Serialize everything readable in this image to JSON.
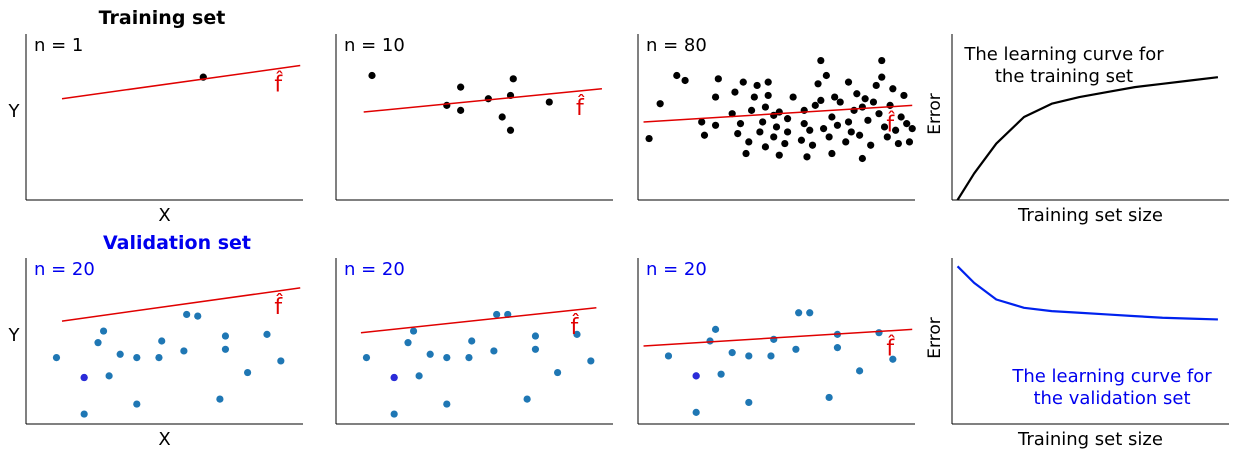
{
  "colors": {
    "train_point": "#000000",
    "val_point": "#1f77b4",
    "highlight_point": "#2b2bd9",
    "fit_line": "#e00000",
    "hat_label": "#e00000",
    "train_curve": "#000000",
    "val_curve": "#0022ee",
    "val_title": "#0000ee"
  },
  "headers": {
    "training": "Training set",
    "validation": "Validation set"
  },
  "fhat_label": "f̂",
  "chart_data": [
    {
      "id": "train-n1",
      "type": "scatter",
      "row": 0,
      "col": 0,
      "annotation": "n = 1",
      "xlabel": "X",
      "ylabel": "Y",
      "xlim": [
        0,
        10
      ],
      "ylim": [
        0,
        10
      ],
      "ann_color": "#000000",
      "fit": {
        "x": [
          1.3,
          9.9
        ],
        "y": [
          6.1,
          8.1
        ]
      },
      "points": [
        {
          "x": 6.4,
          "y": 7.4
        }
      ]
    },
    {
      "id": "train-n10",
      "type": "scatter",
      "row": 0,
      "col": 1,
      "annotation": "n = 10",
      "xlabel": "",
      "ylabel": "",
      "xlim": [
        0,
        10
      ],
      "ylim": [
        0,
        10
      ],
      "ann_color": "#000000",
      "fit": {
        "x": [
          1.0,
          9.6
        ],
        "y": [
          5.3,
          6.7
        ]
      },
      "points": [
        {
          "x": 1.3,
          "y": 7.5
        },
        {
          "x": 4.0,
          "y": 5.7
        },
        {
          "x": 4.5,
          "y": 5.4
        },
        {
          "x": 4.5,
          "y": 6.8
        },
        {
          "x": 5.5,
          "y": 6.1
        },
        {
          "x": 6.0,
          "y": 5.0
        },
        {
          "x": 6.3,
          "y": 4.2
        },
        {
          "x": 6.3,
          "y": 6.3
        },
        {
          "x": 6.4,
          "y": 7.3
        },
        {
          "x": 7.7,
          "y": 5.9
        }
      ]
    },
    {
      "id": "train-n80",
      "type": "scatter",
      "row": 0,
      "col": 2,
      "annotation": "n = 80",
      "xlabel": "",
      "ylabel": "",
      "xlim": [
        0,
        10
      ],
      "ylim": [
        0,
        10
      ],
      "ann_color": "#000000",
      "fit": {
        "x": [
          0.2,
          9.9
        ],
        "y": [
          4.7,
          5.7
        ]
      },
      "points": [
        {
          "x": 0.4,
          "y": 3.7
        },
        {
          "x": 0.8,
          "y": 5.8
        },
        {
          "x": 1.4,
          "y": 7.5
        },
        {
          "x": 1.7,
          "y": 7.2
        },
        {
          "x": 2.3,
          "y": 4.7
        },
        {
          "x": 2.4,
          "y": 3.9
        },
        {
          "x": 2.8,
          "y": 4.5
        },
        {
          "x": 2.8,
          "y": 6.2
        },
        {
          "x": 2.9,
          "y": 7.3
        },
        {
          "x": 3.4,
          "y": 5.2
        },
        {
          "x": 3.5,
          "y": 6.5
        },
        {
          "x": 3.6,
          "y": 4.0
        },
        {
          "x": 3.7,
          "y": 4.6
        },
        {
          "x": 3.8,
          "y": 7.1
        },
        {
          "x": 3.9,
          "y": 2.8
        },
        {
          "x": 4.0,
          "y": 3.5
        },
        {
          "x": 4.1,
          "y": 5.4
        },
        {
          "x": 4.2,
          "y": 6.2
        },
        {
          "x": 4.3,
          "y": 6.9
        },
        {
          "x": 4.4,
          "y": 4.1
        },
        {
          "x": 4.5,
          "y": 4.7
        },
        {
          "x": 4.6,
          "y": 3.2
        },
        {
          "x": 4.6,
          "y": 5.6
        },
        {
          "x": 4.7,
          "y": 6.3
        },
        {
          "x": 4.7,
          "y": 7.1
        },
        {
          "x": 4.9,
          "y": 3.8
        },
        {
          "x": 5.0,
          "y": 4.4
        },
        {
          "x": 5.1,
          "y": 2.7
        },
        {
          "x": 5.1,
          "y": 5.3
        },
        {
          "x": 5.3,
          "y": 3.4
        },
        {
          "x": 5.4,
          "y": 4.1
        },
        {
          "x": 5.4,
          "y": 4.9
        },
        {
          "x": 5.6,
          "y": 6.2
        },
        {
          "x": 5.9,
          "y": 3.6
        },
        {
          "x": 6.0,
          "y": 4.6
        },
        {
          "x": 6.0,
          "y": 5.4
        },
        {
          "x": 6.1,
          "y": 2.6
        },
        {
          "x": 6.2,
          "y": 4.2
        },
        {
          "x": 6.3,
          "y": 3.3
        },
        {
          "x": 6.4,
          "y": 5.7
        },
        {
          "x": 6.5,
          "y": 7.0
        },
        {
          "x": 6.6,
          "y": 8.4
        },
        {
          "x": 6.6,
          "y": 6.0
        },
        {
          "x": 6.7,
          "y": 4.3
        },
        {
          "x": 6.8,
          "y": 7.5
        },
        {
          "x": 6.9,
          "y": 3.8
        },
        {
          "x": 7.0,
          "y": 5.0
        },
        {
          "x": 7.0,
          "y": 2.8
        },
        {
          "x": 7.1,
          "y": 6.2
        },
        {
          "x": 7.2,
          "y": 4.5
        },
        {
          "x": 7.3,
          "y": 5.9
        },
        {
          "x": 7.5,
          "y": 3.5
        },
        {
          "x": 7.6,
          "y": 7.1
        },
        {
          "x": 7.7,
          "y": 4.1
        },
        {
          "x": 7.8,
          "y": 5.4
        },
        {
          "x": 7.9,
          "y": 6.4
        },
        {
          "x": 8.0,
          "y": 3.9
        },
        {
          "x": 8.1,
          "y": 2.5
        },
        {
          "x": 8.1,
          "y": 5.6
        },
        {
          "x": 8.2,
          "y": 6.1
        },
        {
          "x": 8.3,
          "y": 4.8
        },
        {
          "x": 8.4,
          "y": 3.3
        },
        {
          "x": 8.5,
          "y": 5.9
        },
        {
          "x": 8.6,
          "y": 6.9
        },
        {
          "x": 8.7,
          "y": 5.2
        },
        {
          "x": 8.8,
          "y": 7.4
        },
        {
          "x": 8.9,
          "y": 4.4
        },
        {
          "x": 9.0,
          "y": 3.8
        },
        {
          "x": 9.1,
          "y": 5.7
        },
        {
          "x": 9.2,
          "y": 6.7
        },
        {
          "x": 9.3,
          "y": 4.2
        },
        {
          "x": 9.4,
          "y": 3.4
        },
        {
          "x": 9.5,
          "y": 5.0
        },
        {
          "x": 9.6,
          "y": 6.3
        },
        {
          "x": 9.7,
          "y": 4.6
        },
        {
          "x": 9.8,
          "y": 3.5
        },
        {
          "x": 9.9,
          "y": 4.3
        },
        {
          "x": 8.8,
          "y": 8.4
        },
        {
          "x": 4.9,
          "y": 5.1
        },
        {
          "x": 7.6,
          "y": 4.7
        }
      ]
    },
    {
      "id": "val-n20-1",
      "type": "scatter",
      "row": 1,
      "col": 0,
      "annotation": "n = 20",
      "xlabel": "X",
      "ylabel": "Y",
      "xlim": [
        0,
        10
      ],
      "ylim": [
        0,
        10
      ],
      "ann_color": "#0000ee",
      "fit": {
        "x": [
          1.3,
          9.9
        ],
        "y": [
          6.2,
          8.2
        ]
      },
      "points": [
        {
          "x": 1.1,
          "y": 4.0
        },
        {
          "x": 2.1,
          "y": 2.8
        },
        {
          "x": 2.1,
          "y": 0.6
        },
        {
          "x": 2.6,
          "y": 4.9
        },
        {
          "x": 2.8,
          "y": 5.6
        },
        {
          "x": 3.0,
          "y": 2.9
        },
        {
          "x": 3.4,
          "y": 4.2
        },
        {
          "x": 4.0,
          "y": 1.2
        },
        {
          "x": 4.0,
          "y": 4.0
        },
        {
          "x": 4.8,
          "y": 4.0
        },
        {
          "x": 4.9,
          "y": 5.0
        },
        {
          "x": 5.7,
          "y": 4.4
        },
        {
          "x": 5.8,
          "y": 6.6
        },
        {
          "x": 6.2,
          "y": 6.5
        },
        {
          "x": 7.0,
          "y": 1.5
        },
        {
          "x": 7.2,
          "y": 4.5
        },
        {
          "x": 7.2,
          "y": 5.3
        },
        {
          "x": 8.0,
          "y": 3.1
        },
        {
          "x": 8.7,
          "y": 5.4
        },
        {
          "x": 9.2,
          "y": 3.8
        }
      ],
      "highlight": [
        {
          "x": 2.1,
          "y": 2.8
        }
      ]
    },
    {
      "id": "val-n20-2",
      "type": "scatter",
      "row": 1,
      "col": 1,
      "annotation": "n = 20",
      "xlabel": "",
      "ylabel": "",
      "xlim": [
        0,
        10
      ],
      "ylim": [
        0,
        10
      ],
      "ann_color": "#0000ee",
      "fit": {
        "x": [
          0.9,
          9.4
        ],
        "y": [
          5.5,
          7.0
        ]
      },
      "points": [
        {
          "x": 1.1,
          "y": 4.0
        },
        {
          "x": 2.1,
          "y": 2.8
        },
        {
          "x": 2.1,
          "y": 0.6
        },
        {
          "x": 2.6,
          "y": 4.9
        },
        {
          "x": 2.8,
          "y": 5.6
        },
        {
          "x": 3.0,
          "y": 2.9
        },
        {
          "x": 3.4,
          "y": 4.2
        },
        {
          "x": 4.0,
          "y": 1.2
        },
        {
          "x": 4.0,
          "y": 4.0
        },
        {
          "x": 4.8,
          "y": 4.0
        },
        {
          "x": 4.9,
          "y": 5.0
        },
        {
          "x": 5.7,
          "y": 4.4
        },
        {
          "x": 5.8,
          "y": 6.6
        },
        {
          "x": 6.2,
          "y": 6.6
        },
        {
          "x": 6.9,
          "y": 1.5
        },
        {
          "x": 7.2,
          "y": 4.5
        },
        {
          "x": 7.2,
          "y": 5.3
        },
        {
          "x": 8.0,
          "y": 3.1
        },
        {
          "x": 8.7,
          "y": 5.4
        },
        {
          "x": 9.2,
          "y": 3.8
        }
      ],
      "highlight": [
        {
          "x": 2.1,
          "y": 2.8
        }
      ]
    },
    {
      "id": "val-n20-3",
      "type": "scatter",
      "row": 1,
      "col": 2,
      "annotation": "n = 20",
      "xlabel": "",
      "ylabel": "",
      "xlim": [
        0,
        10
      ],
      "ylim": [
        0,
        10
      ],
      "ann_color": "#0000ee",
      "fit": {
        "x": [
          0.2,
          9.9
        ],
        "y": [
          4.7,
          5.7
        ]
      },
      "points": [
        {
          "x": 1.1,
          "y": 4.1
        },
        {
          "x": 2.1,
          "y": 2.9
        },
        {
          "x": 2.1,
          "y": 0.7
        },
        {
          "x": 2.6,
          "y": 5.0
        },
        {
          "x": 2.8,
          "y": 5.7
        },
        {
          "x": 3.0,
          "y": 3.0
        },
        {
          "x": 3.4,
          "y": 4.3
        },
        {
          "x": 4.0,
          "y": 1.3
        },
        {
          "x": 4.0,
          "y": 4.1
        },
        {
          "x": 4.8,
          "y": 4.1
        },
        {
          "x": 4.9,
          "y": 5.1
        },
        {
          "x": 5.7,
          "y": 4.5
        },
        {
          "x": 5.8,
          "y": 6.7
        },
        {
          "x": 6.2,
          "y": 6.7
        },
        {
          "x": 6.9,
          "y": 1.6
        },
        {
          "x": 7.2,
          "y": 4.6
        },
        {
          "x": 7.2,
          "y": 5.4
        },
        {
          "x": 8.0,
          "y": 3.2
        },
        {
          "x": 8.7,
          "y": 5.5
        },
        {
          "x": 9.2,
          "y": 3.9
        }
      ],
      "highlight": [
        {
          "x": 2.1,
          "y": 2.9
        }
      ]
    },
    {
      "id": "train-learning-curve",
      "type": "line",
      "row": 0,
      "col": 3,
      "annotation": "The learning curve for\nthe training set",
      "xlabel": "Training set size",
      "ylabel": "Error",
      "xlim": [
        0,
        10
      ],
      "ylim": [
        0,
        10
      ],
      "ann_color": "#000000",
      "curve_color": "#000000",
      "x": [
        0.2,
        0.8,
        1.6,
        2.6,
        3.6,
        4.6,
        5.6,
        6.6,
        7.6,
        8.6,
        9.6
      ],
      "y": [
        0.0,
        1.6,
        3.4,
        5.0,
        5.8,
        6.2,
        6.5,
        6.8,
        7.0,
        7.2,
        7.4
      ]
    },
    {
      "id": "val-learning-curve",
      "type": "line",
      "row": 1,
      "col": 3,
      "annotation": "The learning curve for\nthe validation set",
      "xlabel": "Training set size",
      "ylabel": "Error",
      "xlim": [
        0,
        10
      ],
      "ylim": [
        0,
        10
      ],
      "ann_color": "#0000ee",
      "curve_color": "#0022ee",
      "x": [
        0.2,
        0.8,
        1.6,
        2.6,
        3.6,
        4.6,
        5.6,
        6.6,
        7.6,
        8.6,
        9.6
      ],
      "y": [
        9.5,
        8.5,
        7.5,
        7.0,
        6.8,
        6.7,
        6.6,
        6.5,
        6.4,
        6.35,
        6.3
      ]
    }
  ]
}
